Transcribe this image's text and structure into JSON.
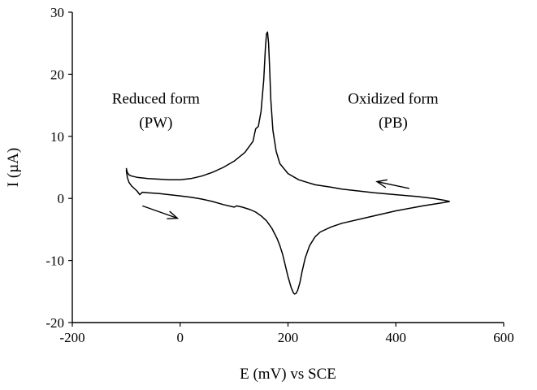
{
  "chart_data": {
    "type": "line",
    "title": "",
    "xlabel": "E (mV) vs SCE",
    "ylabel": "I (µA)",
    "xlim": [
      -200,
      600
    ],
    "ylim": [
      -20,
      30
    ],
    "xticks": [
      -200,
      0,
      200,
      400,
      600
    ],
    "yticks": [
      -20,
      -10,
      0,
      10,
      20,
      30
    ],
    "grid": false,
    "legend": "none",
    "line_color": "#000000",
    "series": [
      {
        "values_description_free": true,
        "x": [
          -100,
          -98,
          -95,
          -90,
          -80,
          -60,
          -40,
          -20,
          0,
          20,
          40,
          60,
          80,
          100,
          120,
          135,
          140,
          145,
          150,
          155,
          158,
          160,
          162,
          164,
          166,
          168,
          172,
          178,
          185,
          200,
          220,
          250,
          280,
          300,
          330,
          360,
          400,
          440,
          470,
          490,
          500
        ],
        "y": [
          4.9,
          4.2,
          3.8,
          3.6,
          3.4,
          3.2,
          3.1,
          3.0,
          3.0,
          3.2,
          3.6,
          4.2,
          5.0,
          6.0,
          7.4,
          9.2,
          11.2,
          11.6,
          14.0,
          19.0,
          24.0,
          26.5,
          26.8,
          25.0,
          21.0,
          16.0,
          11.0,
          7.6,
          5.6,
          4.0,
          3.0,
          2.2,
          1.8,
          1.5,
          1.2,
          0.9,
          0.6,
          0.3,
          0.0,
          -0.3,
          -0.5
        ]
      },
      {
        "x": [
          500,
          480,
          450,
          400,
          350,
          300,
          280,
          260,
          250,
          240,
          232,
          226,
          222,
          218,
          215,
          212,
          210,
          206,
          200,
          195,
          190,
          185,
          180,
          170,
          160,
          150,
          140,
          130,
          115,
          105,
          100,
          80,
          60,
          40,
          20,
          0,
          -20,
          -40,
          -60,
          -70,
          -75,
          -80,
          -85,
          -90,
          -95,
          -98,
          -100
        ],
        "y": [
          -0.5,
          -0.8,
          -1.2,
          -2.0,
          -3.0,
          -4.0,
          -4.6,
          -5.4,
          -6.2,
          -7.6,
          -9.6,
          -11.8,
          -13.6,
          -14.8,
          -15.3,
          -15.4,
          -15.2,
          -14.4,
          -12.6,
          -10.8,
          -9.0,
          -7.6,
          -6.5,
          -4.8,
          -3.6,
          -2.8,
          -2.2,
          -1.8,
          -1.4,
          -1.2,
          -1.4,
          -1.0,
          -0.5,
          -0.1,
          0.2,
          0.4,
          0.6,
          0.8,
          0.9,
          1.0,
          0.6,
          1.2,
          1.6,
          2.0,
          2.6,
          3.4,
          4.6
        ]
      }
    ],
    "annotations": [
      {
        "text": "Reduced form",
        "x": -45,
        "y": 15.3
      },
      {
        "text": "(PW)",
        "x": -45,
        "y": 11.4
      },
      {
        "text": "Oxidized form",
        "x": 395,
        "y": 15.3
      },
      {
        "text": "(PB)",
        "x": 395,
        "y": 11.4
      }
    ],
    "arrows": [
      {
        "name": "forward-sweep-arrow",
        "from": [
          -70,
          -1.2
        ],
        "to": [
          -5,
          -3.2
        ]
      },
      {
        "name": "reverse-sweep-arrow",
        "from": [
          425,
          1.6
        ],
        "to": [
          365,
          2.7
        ]
      }
    ]
  }
}
